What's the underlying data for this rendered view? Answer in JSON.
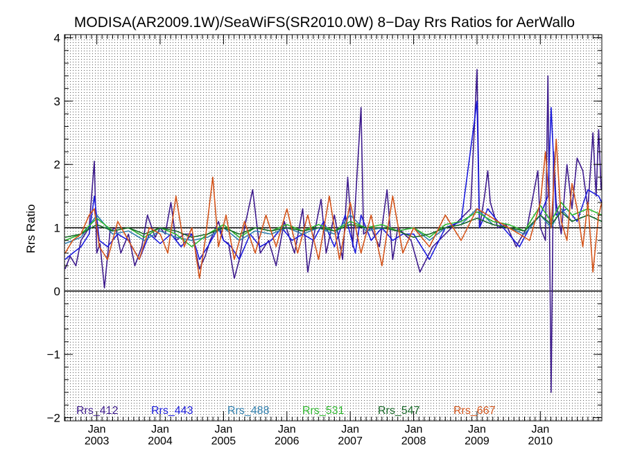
{
  "chart_data": {
    "type": "line",
    "title": "MODISA(AR2009.1W)/SeaWiFS(SR2010.0W) 8−Day Rrs Ratios for AerWallo",
    "xlabel": "",
    "ylabel": "Rrs Ratio",
    "xlim": [
      2002.49,
      2010.97
    ],
    "ylim": [
      -2.05,
      4.05
    ],
    "grid": true,
    "reference_lines": [
      1,
      0
    ],
    "y_ticks": [
      {
        "value": 4,
        "label": "4"
      },
      {
        "value": 3,
        "label": "3"
      },
      {
        "value": 2,
        "label": "2"
      },
      {
        "value": 1,
        "label": "1"
      },
      {
        "value": 0,
        "label": "0"
      },
      {
        "value": -1,
        "label": "−1"
      },
      {
        "value": -2,
        "label": "−2"
      }
    ],
    "x_ticks": [
      {
        "value": 2003.0,
        "month": "Jan",
        "year": "2003"
      },
      {
        "value": 2004.0,
        "month": "Jan",
        "year": "2004"
      },
      {
        "value": 2005.0,
        "month": "Jan",
        "year": "2005"
      },
      {
        "value": 2006.0,
        "month": "Jan",
        "year": "2006"
      },
      {
        "value": 2007.0,
        "month": "Jan",
        "year": "2007"
      },
      {
        "value": 2008.0,
        "month": "Jan",
        "year": "2008"
      },
      {
        "value": 2009.0,
        "month": "Jan",
        "year": "2009"
      },
      {
        "value": 2010.0,
        "month": "Jan",
        "year": "2010"
      }
    ],
    "legend_position": "bottom",
    "series": [
      {
        "name": "Rrs_412",
        "color": "#3d1a8c",
        "x": [
          2002.5,
          2002.58,
          2002.67,
          2002.75,
          2002.88,
          2002.96,
          2003.0,
          2003.05,
          2003.12,
          2003.21,
          2003.3,
          2003.38,
          2003.5,
          2003.6,
          2003.71,
          2003.8,
          2003.92,
          2004.0,
          2004.08,
          2004.17,
          2004.25,
          2004.38,
          2004.5,
          2004.62,
          2004.71,
          2004.79,
          2004.92,
          2005.0,
          2005.08,
          2005.17,
          2005.25,
          2005.33,
          2005.46,
          2005.58,
          2005.71,
          2005.83,
          2005.96,
          2006.04,
          2006.12,
          2006.25,
          2006.33,
          2006.42,
          2006.54,
          2006.62,
          2006.75,
          2006.88,
          2006.96,
          2007.04,
          2007.17,
          2007.21,
          2007.33,
          2007.46,
          2007.58,
          2007.67,
          2007.75,
          2007.96,
          2008.1,
          2008.3,
          2008.5,
          2008.7,
          2008.9,
          2009.0,
          2009.04,
          2009.12,
          2009.17,
          2009.21,
          2009.33,
          2009.46,
          2009.62,
          2009.67,
          2009.79,
          2009.96,
          2010.0,
          2010.08,
          2010.12,
          2010.17,
          2010.21,
          2010.25,
          2010.33,
          2010.42,
          2010.5,
          2010.58,
          2010.67,
          2010.75,
          2010.83,
          2010.88,
          2010.92,
          2010.96
        ],
        "y": [
          0.35,
          0.55,
          0.4,
          0.8,
          1.0,
          2.05,
          0.6,
          0.75,
          0.05,
          0.95,
          1.0,
          0.6,
          0.9,
          0.4,
          0.7,
          1.2,
          0.85,
          1.0,
          0.9,
          1.4,
          0.8,
          0.9,
          0.9,
          0.35,
          0.55,
          0.8,
          1.1,
          0.8,
          0.75,
          0.2,
          0.5,
          1.0,
          1.6,
          0.6,
          0.8,
          0.4,
          1.1,
          0.85,
          0.6,
          1.3,
          0.3,
          0.85,
          1.45,
          0.6,
          1.2,
          0.5,
          1.8,
          0.7,
          2.9,
          0.9,
          1.0,
          0.7,
          1.6,
          0.5,
          1.0,
          0.8,
          0.3,
          0.7,
          0.9,
          1.1,
          1.3,
          3.5,
          1.0,
          1.5,
          1.9,
          1.4,
          1.0,
          1.05,
          0.7,
          0.8,
          1.0,
          1.9,
          1.0,
          0.8,
          3.4,
          -1.6,
          2.2,
          1.4,
          0.9,
          2.0,
          1.3,
          2.1,
          1.9,
          1.3,
          2.5,
          1.5,
          2.55,
          1.6
        ]
      },
      {
        "name": "Rrs_443",
        "color": "#1a1adc",
        "x": [
          2002.5,
          2002.62,
          2002.75,
          2002.88,
          2002.96,
          2003.04,
          2003.17,
          2003.33,
          2003.5,
          2003.67,
          2003.83,
          2004.0,
          2004.17,
          2004.33,
          2004.5,
          2004.62,
          2004.75,
          2004.92,
          2005.0,
          2005.12,
          2005.25,
          2005.42,
          2005.58,
          2005.75,
          2005.92,
          2006.08,
          2006.25,
          2006.42,
          2006.58,
          2006.75,
          2006.92,
          2007.08,
          2007.17,
          2007.33,
          2007.5,
          2007.67,
          2007.83,
          2008.0,
          2008.25,
          2008.5,
          2008.75,
          2009.0,
          2009.04,
          2009.17,
          2009.33,
          2009.5,
          2009.67,
          2009.83,
          2010.0,
          2010.12,
          2010.17,
          2010.25,
          2010.42,
          2010.58,
          2010.75,
          2010.92,
          2010.97
        ],
        "y": [
          0.5,
          0.6,
          0.7,
          0.9,
          1.5,
          0.8,
          0.7,
          0.9,
          0.8,
          0.5,
          0.9,
          0.75,
          0.9,
          0.7,
          0.9,
          0.5,
          0.7,
          1.0,
          0.8,
          0.7,
          0.5,
          0.9,
          0.7,
          0.8,
          1.0,
          0.8,
          0.9,
          0.8,
          1.1,
          0.7,
          1.2,
          0.6,
          1.2,
          0.8,
          1.0,
          0.8,
          0.9,
          0.9,
          0.5,
          1.0,
          1.1,
          3.0,
          1.0,
          1.3,
          1.1,
          0.9,
          0.7,
          1.0,
          1.2,
          1.5,
          2.9,
          1.2,
          1.3,
          1.1,
          1.6,
          1.5,
          1.4
        ]
      },
      {
        "name": "Rrs_488",
        "color": "#2f7fae",
        "x": [
          2002.5,
          2002.75,
          2003.0,
          2003.25,
          2003.5,
          2003.75,
          2004.0,
          2004.25,
          2004.5,
          2004.75,
          2005.0,
          2005.25,
          2005.5,
          2005.75,
          2006.0,
          2006.25,
          2006.5,
          2006.75,
          2007.0,
          2007.25,
          2007.5,
          2007.75,
          2008.0,
          2008.25,
          2008.5,
          2008.75,
          2009.0,
          2009.25,
          2009.5,
          2009.75,
          2010.0,
          2010.17,
          2010.33,
          2010.5,
          2010.75,
          2010.97
        ],
        "y": [
          0.75,
          0.85,
          1.2,
          0.9,
          0.95,
          0.8,
          0.95,
          0.85,
          0.8,
          0.85,
          1.0,
          0.8,
          0.95,
          0.9,
          1.0,
          0.9,
          1.0,
          0.9,
          1.2,
          0.95,
          1.0,
          0.95,
          1.0,
          0.8,
          1.0,
          1.05,
          1.3,
          1.05,
          1.0,
          0.9,
          1.2,
          1.0,
          1.3,
          1.1,
          1.2,
          1.1
        ]
      },
      {
        "name": "Rrs_531",
        "color": "#2db82d",
        "x": [
          2002.5,
          2002.75,
          2003.0,
          2003.25,
          2003.5,
          2003.75,
          2004.0,
          2004.25,
          2004.5,
          2004.75,
          2005.0,
          2005.25,
          2005.5,
          2005.75,
          2006.0,
          2006.25,
          2006.5,
          2006.75,
          2007.0,
          2007.25,
          2007.5,
          2007.75,
          2008.0,
          2008.25,
          2008.5,
          2008.75,
          2009.0,
          2009.25,
          2009.5,
          2009.75,
          2010.0,
          2010.17,
          2010.33,
          2010.5,
          2010.75,
          2010.97
        ],
        "y": [
          0.8,
          0.9,
          1.15,
          0.95,
          1.0,
          0.85,
          1.0,
          0.9,
          0.7,
          0.9,
          1.05,
          0.85,
          1.0,
          0.95,
          1.05,
          0.95,
          1.05,
          0.95,
          1.1,
          1.0,
          1.05,
          0.95,
          1.0,
          0.85,
          1.05,
          1.1,
          1.25,
          1.1,
          1.05,
          0.95,
          1.35,
          1.1,
          1.4,
          1.2,
          1.3,
          1.2
        ]
      },
      {
        "name": "Rrs_547",
        "color": "#1a6b2a",
        "x": [
          2002.5,
          2002.75,
          2003.0,
          2003.25,
          2003.5,
          2003.75,
          2004.0,
          2004.25,
          2004.5,
          2004.75,
          2005.0,
          2005.25,
          2005.5,
          2005.75,
          2006.0,
          2006.25,
          2006.5,
          2006.75,
          2007.0,
          2007.25,
          2007.5,
          2007.75,
          2008.0,
          2008.25,
          2008.5,
          2008.75,
          2009.0,
          2009.25,
          2009.5,
          2009.75,
          2010.0,
          2010.17,
          2010.33,
          2010.5,
          2010.75,
          2010.97
        ],
        "y": [
          0.85,
          0.9,
          1.05,
          0.95,
          1.0,
          0.9,
          1.0,
          0.95,
          0.85,
          0.9,
          1.0,
          0.9,
          1.0,
          0.95,
          1.0,
          0.95,
          1.0,
          0.95,
          1.05,
          1.0,
          1.0,
          0.95,
          0.85,
          0.9,
          1.0,
          1.05,
          1.15,
          1.05,
          1.0,
          0.95,
          1.2,
          1.05,
          1.25,
          1.1,
          1.2,
          1.1
        ]
      },
      {
        "name": "Rrs_667",
        "color": "#d4541a",
        "x": [
          2002.5,
          2002.62,
          2002.75,
          2002.88,
          2002.96,
          2003.04,
          2003.17,
          2003.33,
          2003.5,
          2003.67,
          2003.83,
          2004.0,
          2004.12,
          2004.25,
          2004.38,
          2004.5,
          2004.62,
          2004.71,
          2004.83,
          2004.92,
          2005.04,
          2005.17,
          2005.33,
          2005.5,
          2005.67,
          2005.83,
          2006.0,
          2006.17,
          2006.33,
          2006.5,
          2006.67,
          2006.83,
          2007.0,
          2007.17,
          2007.33,
          2007.5,
          2007.67,
          2007.83,
          2008.0,
          2008.25,
          2008.5,
          2008.75,
          2009.0,
          2009.17,
          2009.33,
          2009.5,
          2009.67,
          2009.83,
          2010.0,
          2010.08,
          2010.17,
          2010.25,
          2010.33,
          2010.42,
          2010.5,
          2010.58,
          2010.67,
          2010.75,
          2010.83,
          2010.92,
          2010.97
        ],
        "y": [
          0.6,
          0.8,
          0.9,
          1.2,
          1.3,
          0.7,
          0.5,
          1.1,
          0.8,
          0.5,
          1.0,
          0.9,
          0.6,
          1.5,
          0.7,
          1.0,
          0.2,
          0.8,
          1.8,
          0.7,
          1.2,
          0.5,
          1.1,
          0.6,
          1.2,
          0.7,
          1.3,
          0.6,
          1.2,
          0.5,
          1.5,
          0.5,
          1.4,
          0.6,
          1.2,
          0.4,
          1.5,
          0.6,
          1.0,
          0.7,
          1.2,
          0.8,
          1.3,
          1.2,
          1.1,
          1.0,
          0.9,
          0.8,
          1.4,
          2.2,
          1.0,
          2.4,
          1.1,
          0.8,
          1.7,
          1.3,
          0.7,
          1.4,
          0.3,
          1.2,
          1.4
        ]
      }
    ]
  }
}
